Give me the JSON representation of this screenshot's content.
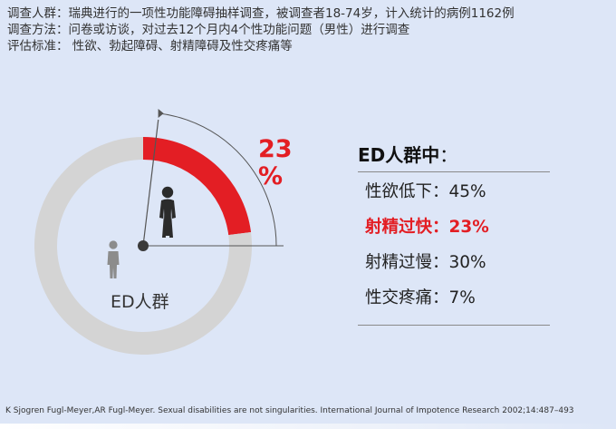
{
  "header": {
    "population_label": "调查人群：",
    "population_text": "瑞典进行的一项性功能障碍抽样调查，被调查者18-74岁，计入统计的病例1162例",
    "method_label": "调查方法：",
    "method_text": "问卷或访谈，对过去12个月内4个性功能问题（男性）进行调查",
    "criteria_label": "评估标准：",
    "criteria_text": " 性欲、勃起障碍、射精障碍及性交疼痛等"
  },
  "chart_data": {
    "type": "pie",
    "title": "",
    "center_label": "ED人群",
    "highlight": {
      "value": 23,
      "display_number": "23",
      "display_unit": "%"
    },
    "slices": [
      {
        "value": 23,
        "color": "#e31e24"
      },
      {
        "value": 77,
        "color": "#d4d4d4"
      }
    ]
  },
  "stats_panel": {
    "title": "ED人群中",
    "title_colon": "：",
    "items": [
      {
        "text": "性欲低下：45%",
        "highlight": false
      },
      {
        "text": "射精过快：23%",
        "highlight": true
      },
      {
        "text": "射精过慢：30%",
        "highlight": false
      },
      {
        "text": "性交疼痛：7%",
        "highlight": false
      }
    ]
  },
  "footer": {
    "citation": "K Sjogren Fugl-Meyer,AR Fugl-Meyer. Sexual disabilities are not singularities. International Journal of Impotence Research 2002;14:487–493"
  },
  "colors": {
    "accent": "#e31e24",
    "ring": "#d4d4d4",
    "background": "#dde6f7",
    "figure_dark": "#2b2b2b",
    "figure_gray": "#8c8c8c"
  },
  "icons": [
    "standing-man-icon",
    "standing-man-gray-icon"
  ]
}
